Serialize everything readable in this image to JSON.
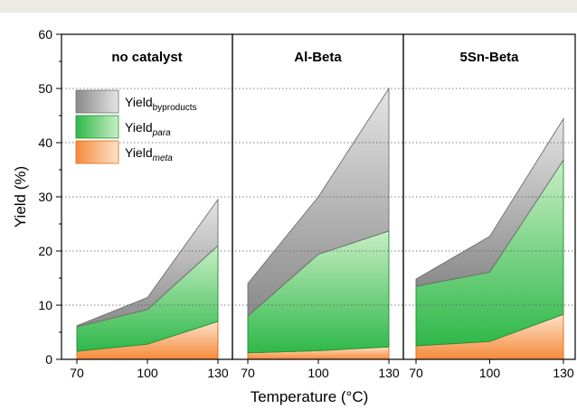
{
  "chart_data": {
    "type": "area",
    "stacked": true,
    "ylabel": "Yield (%)",
    "xlabel": "Temperature (°C)",
    "ylim": [
      0,
      60
    ],
    "yticks": [
      0,
      10,
      20,
      30,
      40,
      50,
      60
    ],
    "x": [
      70,
      100,
      130
    ],
    "grid": "dotted horizontal",
    "legend_placement": "top-left of first panel",
    "colors": {
      "meta": "#f58a3a",
      "para": "#2fb84a",
      "byproducts": "#8a8a8a"
    },
    "legend": [
      {
        "key": "byproducts",
        "main": "Yield",
        "sub": "byproducts",
        "sub_italic": false
      },
      {
        "key": "para",
        "main": "Yield",
        "sub": "para",
        "sub_italic": true
      },
      {
        "key": "meta",
        "main": "Yield",
        "sub": "meta",
        "sub_italic": true
      }
    ],
    "panels": [
      {
        "title": "no catalyst",
        "series": [
          {
            "key": "meta",
            "values": [
              1.5,
              2.8,
              7.0
            ]
          },
          {
            "key": "para",
            "values": [
              4.5,
              6.4,
              14.0
            ]
          },
          {
            "key": "byproducts",
            "values": [
              0.2,
              2.2,
              8.5
            ]
          }
        ]
      },
      {
        "title": "Al-Beta",
        "series": [
          {
            "key": "meta",
            "values": [
              1.2,
              1.6,
              2.3
            ]
          },
          {
            "key": "para",
            "values": [
              6.8,
              17.8,
              21.4
            ]
          },
          {
            "key": "byproducts",
            "values": [
              6.0,
              10.6,
              26.3
            ]
          }
        ]
      },
      {
        "title": "5Sn-Beta",
        "series": [
          {
            "key": "meta",
            "values": [
              2.5,
              3.3,
              8.3
            ]
          },
          {
            "key": "para",
            "values": [
              11.0,
              12.8,
              28.5
            ]
          },
          {
            "key": "byproducts",
            "values": [
              1.3,
              6.6,
              7.6
            ]
          }
        ]
      }
    ]
  }
}
